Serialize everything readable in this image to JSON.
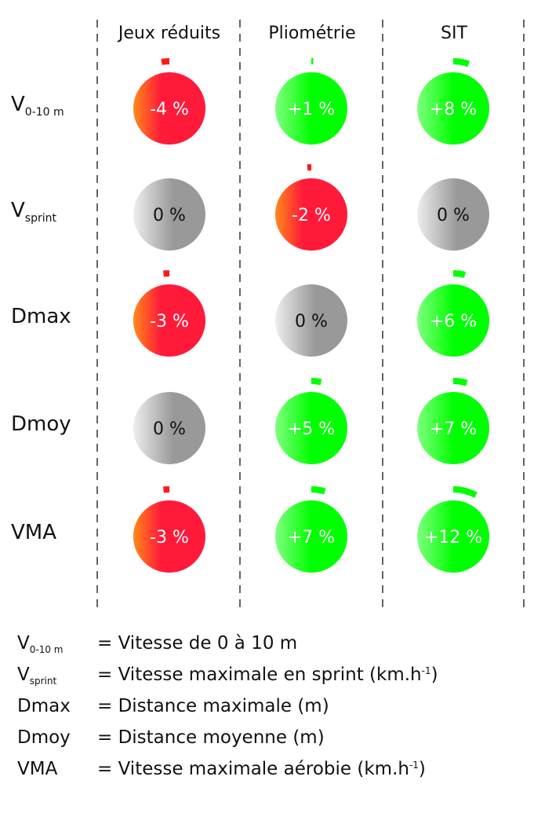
{
  "columns": [
    "Jeux réduits",
    "Pliométrie",
    "SIT"
  ],
  "rows": [
    {
      "label": "V",
      "sub": "0-10 m",
      "values": [
        -4,
        1,
        8
      ],
      "texts": [
        "-4 %",
        "+1 %",
        "+8 %"
      ]
    },
    {
      "label": "V",
      "sub": "sprint",
      "values": [
        0,
        -2,
        0
      ],
      "texts": [
        "0 %",
        "-2 %",
        "0 %"
      ]
    },
    {
      "label": "Dmax",
      "sub": "",
      "values": [
        -3,
        0,
        6
      ],
      "texts": [
        "-3 %",
        "0 %",
        "+6 %"
      ]
    },
    {
      "label": "Dmoy",
      "sub": "",
      "values": [
        0,
        5,
        7
      ],
      "texts": [
        "0 %",
        "+5 %",
        "+7 %"
      ]
    },
    {
      "label": "VMA",
      "sub": "",
      "values": [
        -3,
        7,
        12
      ],
      "texts": [
        "-3 %",
        "+7 %",
        "+12 %"
      ]
    }
  ],
  "legend": [
    {
      "key": "V",
      "sub": "0-10 m",
      "desc": "= Vitesse de 0 à 10 m",
      "sup": "",
      "tail": ""
    },
    {
      "key": "V",
      "sub": "sprint",
      "desc": "= Vitesse maximale en sprint (km.h",
      "sup": "-1",
      "tail": ")"
    },
    {
      "key": "Dmax",
      "sub": "",
      "desc": "= Distance maximale (m)",
      "sup": "",
      "tail": ""
    },
    {
      "key": "Dmoy",
      "sub": "",
      "desc": "= Distance moyenne (m)",
      "sup": "",
      "tail": ""
    },
    {
      "key": "VMA",
      "sub": "",
      "desc": "= Vitesse maximale aérobie (km.h",
      "sup": "-1",
      "tail": ")"
    }
  ],
  "colors": {
    "negative": "#ff1a3a",
    "negative_edge": "#ff8a1a",
    "positive": "#00ff00",
    "positive_light": "#80ff80",
    "neutral": "#999999",
    "neutral_light": "#eeeeee"
  }
}
